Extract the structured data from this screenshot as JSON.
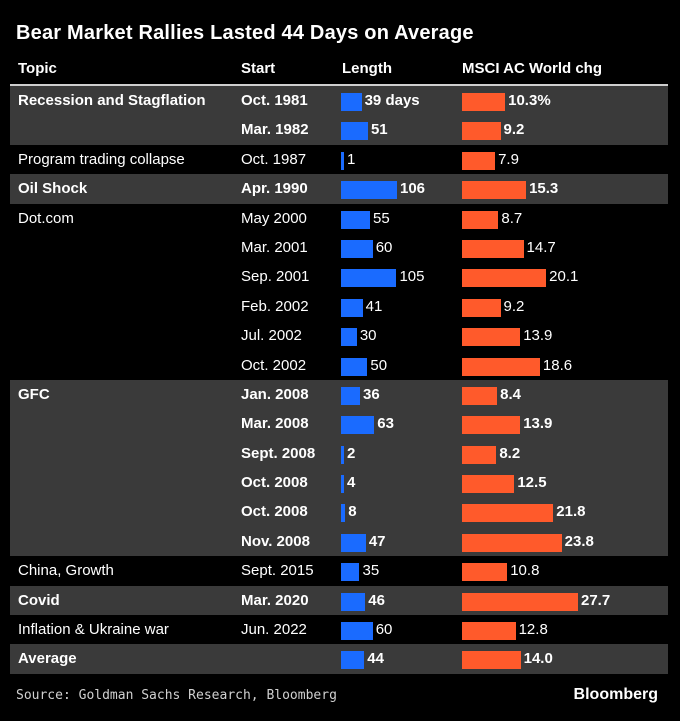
{
  "title": "Bear Market Rallies Lasted 44 Days on Average",
  "header": {
    "topic": "Topic",
    "start": "Start",
    "length": "Length",
    "change": "MSCI AC World chg"
  },
  "chart_data": {
    "type": "table",
    "columns": [
      "Topic",
      "Start",
      "Length",
      "MSCI AC World chg"
    ],
    "groups": [
      {
        "topic": "Recession and Stagflation",
        "shaded": true,
        "bold": true,
        "rows": [
          {
            "start": "Oct. 1981",
            "length": 39,
            "length_label": "39 days",
            "change": 10.3,
            "change_label": "10.3%"
          },
          {
            "start": "Mar. 1982",
            "length": 51,
            "length_label": "51",
            "change": 9.2,
            "change_label": "9.2"
          }
        ]
      },
      {
        "topic": "Program trading collapse",
        "shaded": false,
        "bold": false,
        "rows": [
          {
            "start": "Oct. 1987",
            "length": 1,
            "length_label": "1",
            "change": 7.9,
            "change_label": "7.9"
          }
        ]
      },
      {
        "topic": "Oil Shock",
        "shaded": true,
        "bold": true,
        "rows": [
          {
            "start": "Apr. 1990",
            "length": 106,
            "length_label": "106",
            "change": 15.3,
            "change_label": "15.3"
          }
        ]
      },
      {
        "topic": "Dot.com",
        "shaded": false,
        "bold": false,
        "rows": [
          {
            "start": "May 2000",
            "length": 55,
            "length_label": "55",
            "change": 8.7,
            "change_label": "8.7"
          },
          {
            "start": "Mar. 2001",
            "length": 60,
            "length_label": "60",
            "change": 14.7,
            "change_label": "14.7"
          },
          {
            "start": "Sep. 2001",
            "length": 105,
            "length_label": "105",
            "change": 20.1,
            "change_label": "20.1"
          },
          {
            "start": "Feb. 2002",
            "length": 41,
            "length_label": "41",
            "change": 9.2,
            "change_label": "9.2"
          },
          {
            "start": "Jul. 2002",
            "length": 30,
            "length_label": "30",
            "change": 13.9,
            "change_label": "13.9"
          },
          {
            "start": "Oct. 2002",
            "length": 50,
            "length_label": "50",
            "change": 18.6,
            "change_label": "18.6"
          }
        ]
      },
      {
        "topic": "GFC",
        "shaded": true,
        "bold": true,
        "rows": [
          {
            "start": "Jan. 2008",
            "length": 36,
            "length_label": "36",
            "change": 8.4,
            "change_label": "8.4"
          },
          {
            "start": "Mar. 2008",
            "length": 63,
            "length_label": "63",
            "change": 13.9,
            "change_label": "13.9"
          },
          {
            "start": "Sept. 2008",
            "length": 2,
            "length_label": "2",
            "change": 8.2,
            "change_label": "8.2"
          },
          {
            "start": "Oct. 2008",
            "length": 4,
            "length_label": "4",
            "change": 12.5,
            "change_label": "12.5"
          },
          {
            "start": "Oct. 2008",
            "length": 8,
            "length_label": "8",
            "change": 21.8,
            "change_label": "21.8"
          },
          {
            "start": "Nov. 2008",
            "length": 47,
            "length_label": "47",
            "change": 23.8,
            "change_label": "23.8"
          }
        ]
      },
      {
        "topic": "China, Growth",
        "shaded": false,
        "bold": false,
        "rows": [
          {
            "start": "Sept. 2015",
            "length": 35,
            "length_label": "35",
            "change": 10.8,
            "change_label": "10.8"
          }
        ]
      },
      {
        "topic": "Covid",
        "shaded": true,
        "bold": true,
        "rows": [
          {
            "start": "Mar. 2020",
            "length": 46,
            "length_label": "46",
            "change": 27.7,
            "change_label": "27.7"
          }
        ]
      },
      {
        "topic": "Inflation & Ukraine war",
        "shaded": false,
        "bold": false,
        "rows": [
          {
            "start": "Jun. 2022",
            "length": 60,
            "length_label": "60",
            "change": 12.8,
            "change_label": "12.8"
          }
        ]
      },
      {
        "topic": "Average",
        "shaded": true,
        "bold": true,
        "rows": [
          {
            "start": "",
            "length": 44,
            "length_label": "44",
            "change": 14.0,
            "change_label": "14.0"
          }
        ]
      }
    ]
  },
  "colors": {
    "length_bar": "#1a6bff",
    "change_bar": "#ff5a2b",
    "shade": "#3a3a3a"
  },
  "source": "Source: Goldman Sachs Research, Bloomberg",
  "brand": "Bloomberg"
}
